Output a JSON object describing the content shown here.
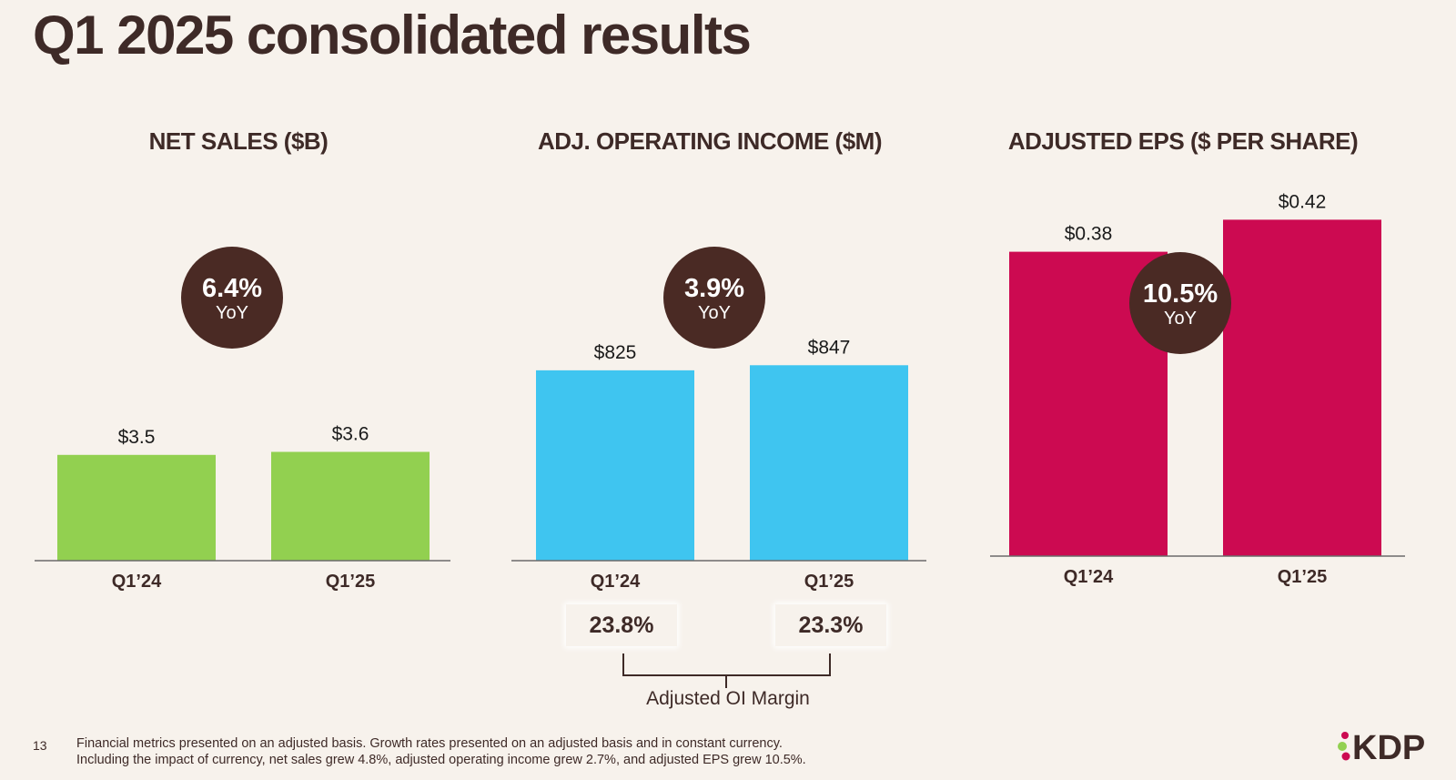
{
  "title": "Q1 2025 consolidated results",
  "colors": {
    "net_sales": "#92d050",
    "operating_income": "#3fc5f0",
    "eps": "#cc0a51",
    "circle": "#4a2a24",
    "text": "#3e2a27"
  },
  "chart_data": [
    {
      "type": "bar",
      "title": "NET SALES ($B)",
      "categories": [
        "Q1’24",
        "Q1’25"
      ],
      "values": [
        3.5,
        3.6
      ],
      "value_labels": [
        "$3.5",
        "$3.6"
      ],
      "yoy": {
        "pct": "6.4%",
        "label": "YoY"
      },
      "color": "#92d050"
    },
    {
      "type": "bar",
      "title": "ADJ. OPERATING INCOME ($M)",
      "categories": [
        "Q1’24",
        "Q1’25"
      ],
      "values": [
        825,
        847
      ],
      "value_labels": [
        "$825",
        "$847"
      ],
      "yoy": {
        "pct": "3.9%",
        "label": "YoY"
      },
      "color": "#3fc5f0"
    },
    {
      "type": "bar",
      "title": "ADJUSTED EPS ($ PER SHARE)",
      "categories": [
        "Q1’24",
        "Q1’25"
      ],
      "values": [
        0.38,
        0.42
      ],
      "value_labels": [
        "$0.38",
        "$0.42"
      ],
      "yoy": {
        "pct": "10.5%",
        "label": "YoY"
      },
      "color": "#cc0a51"
    }
  ],
  "margins": {
    "values": [
      "23.8%",
      "23.3%"
    ],
    "caption": "Adjusted OI Margin"
  },
  "footer": {
    "page_number": "13",
    "note_line1": "Financial metrics presented on an adjusted basis. Growth rates presented on an adjusted basis and in constant currency.",
    "note_line2": "Including the impact of currency, net sales grew 4.8%, adjusted operating income grew 2.7%, and adjusted EPS grew 10.5%.",
    "logo_text": "KDP"
  }
}
